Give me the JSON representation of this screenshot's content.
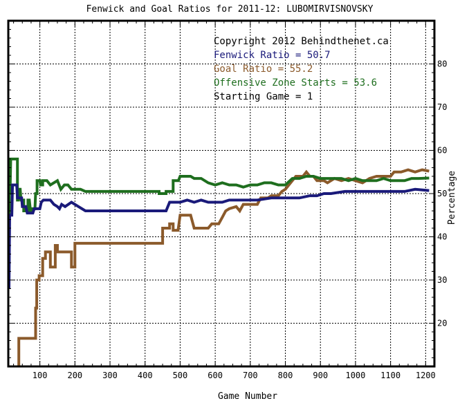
{
  "chart_data": {
    "type": "line",
    "title": "Fenwick and Goal Ratios for 2011-12: LUBOMIRVISNOVSKY",
    "xlabel": "Game Number",
    "ylabel": "Percentage",
    "xlim": [
      10,
      1225
    ],
    "ylim": [
      10,
      90
    ],
    "x_ticks": [
      100,
      200,
      300,
      400,
      500,
      600,
      700,
      800,
      900,
      1000,
      1100,
      1200
    ],
    "y_ticks": [
      20,
      30,
      40,
      50,
      60,
      70,
      80
    ],
    "grid": true,
    "legend_placement": "top-right",
    "annotations": [
      {
        "text": "Copyright 2012 Behindthenet.ca",
        "color": "#000000"
      },
      {
        "text": "Fenwick Ratio = 50.7",
        "color": "#1a1a7a"
      },
      {
        "text": "Goal Ratio = 55.2",
        "color": "#8b5a2b"
      },
      {
        "text": "Offensive Zone Starts = 53.6",
        "color": "#1e6e1e"
      },
      {
        "text": "Starting Game = 1",
        "color": "#000000"
      }
    ],
    "series": [
      {
        "name": "Fenwick Ratio",
        "color": "#1a1a7a",
        "points": [
          [
            12,
            28
          ],
          [
            14,
            45
          ],
          [
            20,
            45
          ],
          [
            22,
            52
          ],
          [
            34,
            52
          ],
          [
            36,
            49
          ],
          [
            48,
            49
          ],
          [
            50,
            47
          ],
          [
            60,
            47
          ],
          [
            64,
            45.5
          ],
          [
            80,
            45.5
          ],
          [
            84,
            46.5
          ],
          [
            100,
            46.5
          ],
          [
            104,
            48
          ],
          [
            110,
            48.5
          ],
          [
            130,
            48.5
          ],
          [
            140,
            47.5
          ],
          [
            150,
            47
          ],
          [
            156,
            46.5
          ],
          [
            162,
            47.5
          ],
          [
            172,
            47
          ],
          [
            190,
            48
          ],
          [
            210,
            47
          ],
          [
            230,
            46
          ],
          [
            300,
            46
          ],
          [
            400,
            46
          ],
          [
            460,
            46
          ],
          [
            470,
            48
          ],
          [
            500,
            48
          ],
          [
            520,
            48.5
          ],
          [
            540,
            48
          ],
          [
            560,
            48.5
          ],
          [
            580,
            48
          ],
          [
            600,
            48
          ],
          [
            620,
            48
          ],
          [
            640,
            48.5
          ],
          [
            660,
            48.5
          ],
          [
            680,
            48.5
          ],
          [
            700,
            48.5
          ],
          [
            720,
            48.5
          ],
          [
            760,
            49
          ],
          [
            800,
            49
          ],
          [
            840,
            49
          ],
          [
            870,
            49.5
          ],
          [
            890,
            49.5
          ],
          [
            910,
            50
          ],
          [
            930,
            50
          ],
          [
            970,
            50.5
          ],
          [
            1000,
            50.5
          ],
          [
            1020,
            50.5
          ],
          [
            1060,
            50.5
          ],
          [
            1100,
            50.5
          ],
          [
            1140,
            50.5
          ],
          [
            1170,
            51
          ],
          [
            1210,
            50.7
          ]
        ]
      },
      {
        "name": "Goal Ratio",
        "color": "#8b5a2b",
        "points": [
          [
            40,
            10
          ],
          [
            40,
            16.5
          ],
          [
            60,
            16.5
          ],
          [
            80,
            16.5
          ],
          [
            88,
            16.5
          ],
          [
            88,
            23.5
          ],
          [
            91,
            23.5
          ],
          [
            91,
            30
          ],
          [
            98,
            30
          ],
          [
            98,
            31
          ],
          [
            108,
            31
          ],
          [
            108,
            35
          ],
          [
            116,
            35
          ],
          [
            116,
            36.5
          ],
          [
            130,
            36.5
          ],
          [
            130,
            33
          ],
          [
            144,
            33
          ],
          [
            144,
            38
          ],
          [
            150,
            38
          ],
          [
            150,
            36.5
          ],
          [
            176,
            36.5
          ],
          [
            182,
            36.5
          ],
          [
            190,
            36.5
          ],
          [
            190,
            33
          ],
          [
            200,
            33
          ],
          [
            200,
            38.5
          ],
          [
            250,
            38.5
          ],
          [
            300,
            38.5
          ],
          [
            350,
            38.5
          ],
          [
            400,
            38.5
          ],
          [
            450,
            38.5
          ],
          [
            450,
            42
          ],
          [
            470,
            42
          ],
          [
            470,
            43
          ],
          [
            480,
            43
          ],
          [
            480,
            41.5
          ],
          [
            494,
            41.5
          ],
          [
            500,
            45
          ],
          [
            530,
            45
          ],
          [
            540,
            42
          ],
          [
            560,
            42
          ],
          [
            580,
            42
          ],
          [
            590,
            43
          ],
          [
            610,
            43
          ],
          [
            620,
            44.5
          ],
          [
            630,
            46
          ],
          [
            640,
            46.5
          ],
          [
            660,
            47
          ],
          [
            670,
            46
          ],
          [
            680,
            47.5
          ],
          [
            700,
            47.5
          ],
          [
            720,
            47.5
          ],
          [
            730,
            49
          ],
          [
            750,
            49
          ],
          [
            760,
            49.5
          ],
          [
            780,
            49.5
          ],
          [
            790,
            50.5
          ],
          [
            800,
            51
          ],
          [
            810,
            52
          ],
          [
            830,
            54
          ],
          [
            850,
            54
          ],
          [
            860,
            55
          ],
          [
            870,
            54
          ],
          [
            880,
            54
          ],
          [
            890,
            53
          ],
          [
            910,
            53
          ],
          [
            920,
            52.5
          ],
          [
            940,
            53.5
          ],
          [
            960,
            53
          ],
          [
            980,
            53.5
          ],
          [
            1000,
            53
          ],
          [
            1020,
            52.5
          ],
          [
            1040,
            53.5
          ],
          [
            1060,
            54
          ],
          [
            1080,
            54
          ],
          [
            1100,
            54
          ],
          [
            1110,
            55
          ],
          [
            1130,
            55
          ],
          [
            1150,
            55.5
          ],
          [
            1170,
            55
          ],
          [
            1190,
            55.5
          ],
          [
            1210,
            55.2
          ]
        ]
      },
      {
        "name": "Offensive Zone Starts",
        "color": "#1e6e1e",
        "points": [
          [
            12,
            30
          ],
          [
            13,
            50
          ],
          [
            15,
            50
          ],
          [
            17,
            58
          ],
          [
            36,
            58
          ],
          [
            36,
            48.5
          ],
          [
            38,
            48.5
          ],
          [
            40,
            51
          ],
          [
            44,
            51
          ],
          [
            46,
            48.5
          ],
          [
            54,
            48.5
          ],
          [
            54,
            46
          ],
          [
            66,
            46
          ],
          [
            66,
            48.5
          ],
          [
            70,
            48.5
          ],
          [
            74,
            45.5
          ],
          [
            76,
            46.5
          ],
          [
            86,
            46.5
          ],
          [
            88,
            50
          ],
          [
            92,
            50
          ],
          [
            92,
            53
          ],
          [
            100,
            53
          ],
          [
            102,
            52
          ],
          [
            108,
            52
          ],
          [
            108,
            53
          ],
          [
            120,
            53
          ],
          [
            130,
            52
          ],
          [
            150,
            53
          ],
          [
            160,
            51
          ],
          [
            170,
            52
          ],
          [
            180,
            52
          ],
          [
            190,
            51
          ],
          [
            200,
            51
          ],
          [
            216,
            51
          ],
          [
            230,
            50.5
          ],
          [
            300,
            50.5
          ],
          [
            400,
            50.5
          ],
          [
            440,
            50.5
          ],
          [
            440,
            50
          ],
          [
            460,
            50
          ],
          [
            460,
            50.5
          ],
          [
            480,
            50.5
          ],
          [
            480,
            53
          ],
          [
            495,
            53
          ],
          [
            500,
            54
          ],
          [
            530,
            54
          ],
          [
            540,
            53.5
          ],
          [
            560,
            53.5
          ],
          [
            580,
            52.5
          ],
          [
            600,
            52
          ],
          [
            620,
            52.5
          ],
          [
            640,
            52
          ],
          [
            660,
            52
          ],
          [
            680,
            51.5
          ],
          [
            700,
            52
          ],
          [
            720,
            52
          ],
          [
            740,
            52.5
          ],
          [
            760,
            52.5
          ],
          [
            780,
            52
          ],
          [
            800,
            52
          ],
          [
            820,
            53.5
          ],
          [
            840,
            53.5
          ],
          [
            860,
            54
          ],
          [
            880,
            54
          ],
          [
            900,
            53.5
          ],
          [
            920,
            53.5
          ],
          [
            940,
            53.5
          ],
          [
            960,
            53.5
          ],
          [
            980,
            53
          ],
          [
            1000,
            53.5
          ],
          [
            1020,
            53
          ],
          [
            1040,
            53
          ],
          [
            1060,
            53
          ],
          [
            1080,
            53.5
          ],
          [
            1100,
            53
          ],
          [
            1120,
            53
          ],
          [
            1140,
            53
          ],
          [
            1160,
            53.5
          ],
          [
            1180,
            53.5
          ],
          [
            1210,
            53.6
          ]
        ]
      }
    ]
  }
}
